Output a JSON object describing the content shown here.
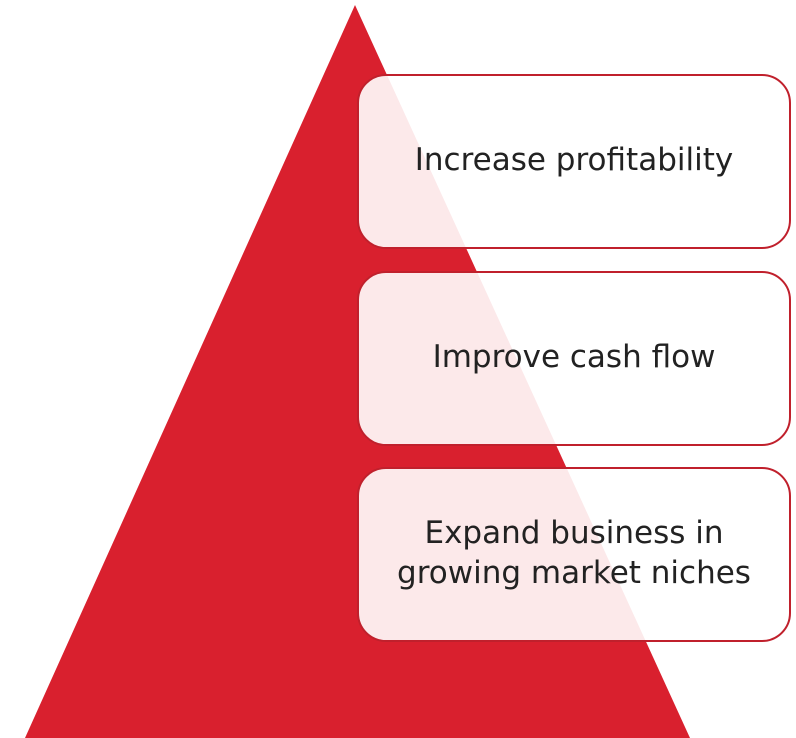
{
  "items": [
    {
      "lines": [
        "Increase profitability"
      ]
    },
    {
      "lines": [
        "Improve cash flow"
      ]
    },
    {
      "lines": [
        "Expand business in",
        "growing market niches"
      ]
    }
  ]
}
